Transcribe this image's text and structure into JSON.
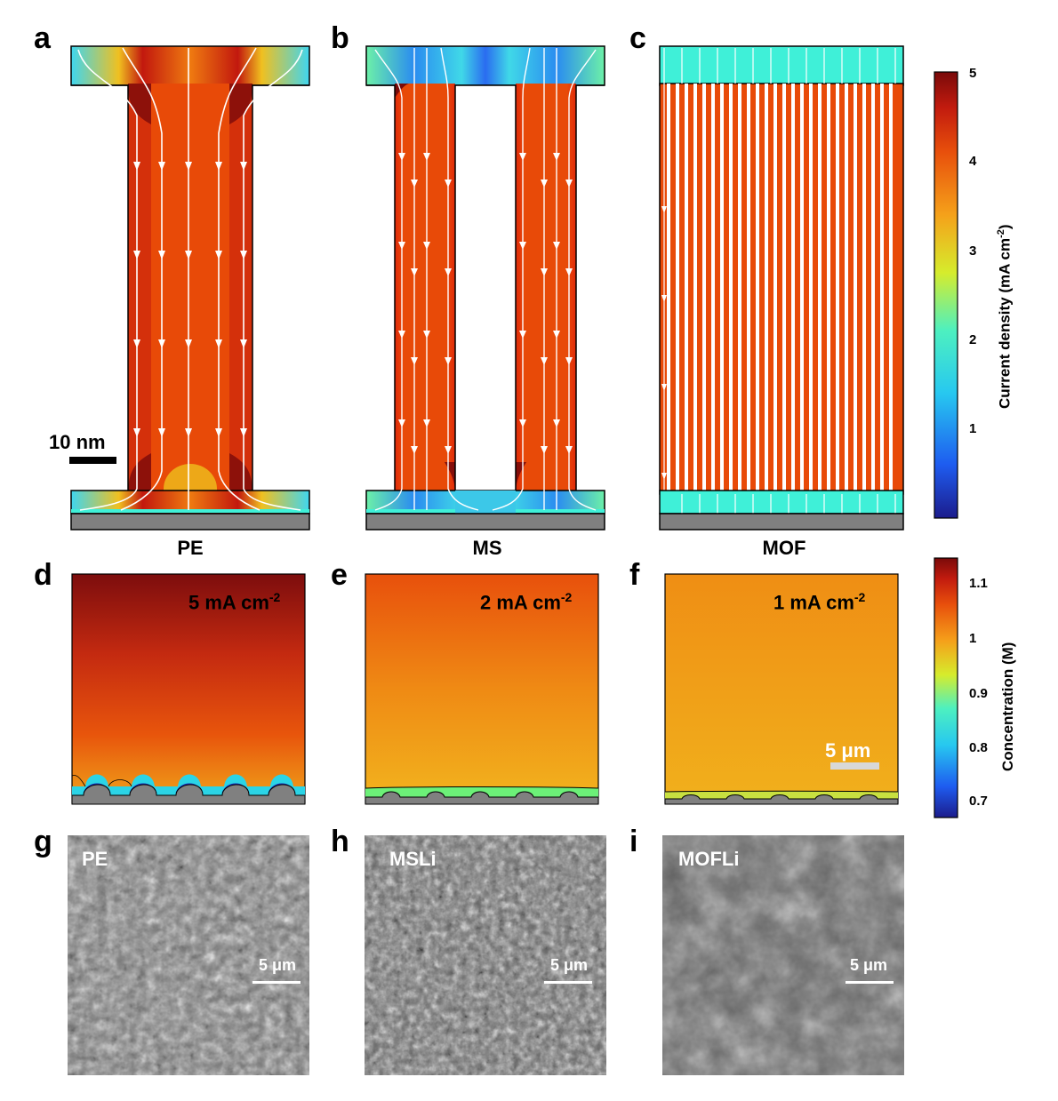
{
  "panel_labels": [
    "a",
    "b",
    "c",
    "d",
    "e",
    "f",
    "g",
    "h",
    "i"
  ],
  "row1": {
    "captions": [
      "PE",
      "MS",
      "MOF"
    ],
    "scale_bar": "10 nm",
    "colorbar": {
      "title": "Current density (mA cm",
      "title_sup": "-2",
      "title_end": ")",
      "ticks": [
        "5",
        "4",
        "3",
        "2",
        "1"
      ]
    }
  },
  "row2": {
    "annotations": [
      {
        "text": "5 mA cm",
        "sup": "-2"
      },
      {
        "text": "2 mA cm",
        "sup": "-2"
      },
      {
        "text": "1 mA cm",
        "sup": "-2"
      }
    ],
    "scale_bar": "5 μm",
    "colorbar": {
      "title": "Concentration  (M)",
      "ticks": [
        "1.1",
        "1",
        "0.9",
        "0.8",
        "0.7"
      ]
    }
  },
  "row3": {
    "labels": [
      "PE",
      "MSLi",
      "MOFLi"
    ],
    "scale_bars": [
      "5 μm",
      "5 μm",
      "5 μm"
    ]
  },
  "colors": {
    "high_current": "#e84a08",
    "separator_gray": "#808080",
    "cyan": "#3ff0d8"
  }
}
